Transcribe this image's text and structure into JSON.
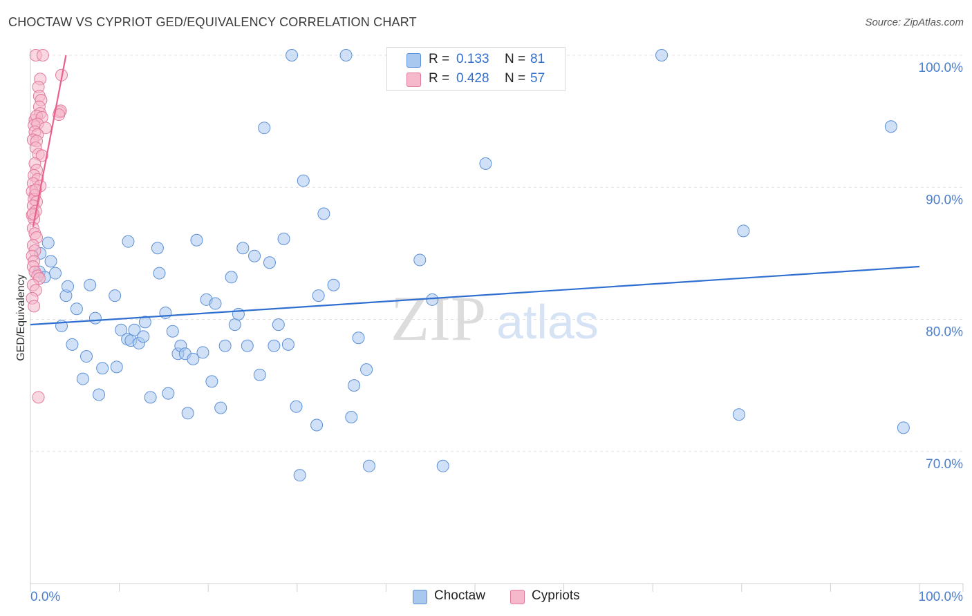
{
  "title": "CHOCTAW VS CYPRIOT GED/EQUIVALENCY CORRELATION CHART",
  "source": "Source: ZipAtlas.com",
  "watermark": {
    "zip": "ZIP",
    "atlas": "atlas"
  },
  "legend": {
    "rows": [
      {
        "r_label": "R =",
        "r_value": "0.133",
        "n_label": "N =",
        "n_value": "81",
        "color": "#a9c8f0",
        "border": "#5b8fd6"
      },
      {
        "r_label": "R =",
        "r_value": "0.428",
        "n_label": "N =",
        "n_value": "57",
        "color": "#f6b8cb",
        "border": "#e07a9c"
      }
    ]
  },
  "bottom_legend": [
    {
      "label": "Choctaw",
      "color": "#a9c8f0",
      "border": "#5b8fd6"
    },
    {
      "label": "Cypriots",
      "color": "#f6b8cb",
      "border": "#e07a9c"
    }
  ],
  "chart_data": {
    "type": "scatter",
    "title": "CHOCTAW VS CYPRIOT GED/EQUIVALENCY CORRELATION CHART",
    "xlabel": "",
    "ylabel": "GED/Equivalency",
    "xlim": [
      0,
      100
    ],
    "ylim": [
      60,
      100
    ],
    "x_tick_labels": [
      "0.0%",
      "100.0%"
    ],
    "y_ticks": [
      70,
      80,
      90,
      100
    ],
    "y_tick_labels": [
      "70.0%",
      "80.0%",
      "90.0%",
      "100.0%"
    ],
    "grid": true,
    "series": [
      {
        "name": "Choctaw",
        "color": "#a9c8f0",
        "edge": "#5b8fd6",
        "line_color": "#2f6fd0",
        "trend": {
          "x": [
            0,
            100
          ],
          "y": [
            79.6,
            84.0
          ]
        },
        "points": [
          [
            2.0,
            85.8
          ],
          [
            2.3,
            84.4
          ],
          [
            2.8,
            83.5
          ],
          [
            1.0,
            83.6
          ],
          [
            3.5,
            79.5
          ],
          [
            4.0,
            81.8
          ],
          [
            4.2,
            82.5
          ],
          [
            4.7,
            78.1
          ],
          [
            5.2,
            80.8
          ],
          [
            5.9,
            75.5
          ],
          [
            6.3,
            77.2
          ],
          [
            6.7,
            82.6
          ],
          [
            7.3,
            80.1
          ],
          [
            7.7,
            74.3
          ],
          [
            8.1,
            76.3
          ],
          [
            9.5,
            81.8
          ],
          [
            9.7,
            76.4
          ],
          [
            10.2,
            79.2
          ],
          [
            10.9,
            78.5
          ],
          [
            11.0,
            85.9
          ],
          [
            11.3,
            78.4
          ],
          [
            11.7,
            79.2
          ],
          [
            12.2,
            78.2
          ],
          [
            12.7,
            78.7
          ],
          [
            12.9,
            79.8
          ],
          [
            13.5,
            74.1
          ],
          [
            14.3,
            85.4
          ],
          [
            14.5,
            83.5
          ],
          [
            15.2,
            80.5
          ],
          [
            15.5,
            74.4
          ],
          [
            16.0,
            79.1
          ],
          [
            16.6,
            77.4
          ],
          [
            16.9,
            78.0
          ],
          [
            17.4,
            77.4
          ],
          [
            17.7,
            72.9
          ],
          [
            18.3,
            77.0
          ],
          [
            18.7,
            86.0
          ],
          [
            19.4,
            77.5
          ],
          [
            19.8,
            81.5
          ],
          [
            20.4,
            75.3
          ],
          [
            20.8,
            81.2
          ],
          [
            21.4,
            73.3
          ],
          [
            21.9,
            78.0
          ],
          [
            22.6,
            83.2
          ],
          [
            23.0,
            79.6
          ],
          [
            23.4,
            80.4
          ],
          [
            23.9,
            85.4
          ],
          [
            24.4,
            78.0
          ],
          [
            25.2,
            84.8
          ],
          [
            25.8,
            75.8
          ],
          [
            26.3,
            94.5
          ],
          [
            26.9,
            84.3
          ],
          [
            27.4,
            78.0
          ],
          [
            27.9,
            79.6
          ],
          [
            28.5,
            86.1
          ],
          [
            29.0,
            78.1
          ],
          [
            29.4,
            100.0
          ],
          [
            29.9,
            73.4
          ],
          [
            30.3,
            68.2
          ],
          [
            30.7,
            90.5
          ],
          [
            32.2,
            72.0
          ],
          [
            32.4,
            81.8
          ],
          [
            33.0,
            88.0
          ],
          [
            34.1,
            82.6
          ],
          [
            35.5,
            100.0
          ],
          [
            36.1,
            72.6
          ],
          [
            36.4,
            75.0
          ],
          [
            36.9,
            78.6
          ],
          [
            37.8,
            76.2
          ],
          [
            38.1,
            68.9
          ],
          [
            43.8,
            84.5
          ],
          [
            45.2,
            81.5
          ],
          [
            46.4,
            68.9
          ],
          [
            51.2,
            91.8
          ],
          [
            71.0,
            100.0
          ],
          [
            79.7,
            72.8
          ],
          [
            80.2,
            86.7
          ],
          [
            96.8,
            94.6
          ],
          [
            98.2,
            71.8
          ],
          [
            1.1,
            85.0
          ],
          [
            1.6,
            83.2
          ]
        ]
      },
      {
        "name": "Cypriots",
        "color": "#f6b8cb",
        "edge": "#e07a9c",
        "line_color": "#e8608c",
        "trend": {
          "x": [
            0.3,
            4.0
          ],
          "y": [
            87.0,
            100.0
          ]
        },
        "points": [
          [
            0.6,
            100.0
          ],
          [
            1.4,
            100.0
          ],
          [
            1.1,
            98.2
          ],
          [
            3.5,
            98.5
          ],
          [
            0.9,
            97.6
          ],
          [
            1.0,
            96.9
          ],
          [
            1.2,
            96.6
          ],
          [
            1.0,
            96.1
          ],
          [
            1.1,
            95.6
          ],
          [
            3.3,
            95.7
          ],
          [
            3.4,
            95.8
          ],
          [
            3.2,
            95.5
          ],
          [
            0.5,
            95.1
          ],
          [
            0.7,
            95.4
          ],
          [
            1.3,
            95.3
          ],
          [
            0.4,
            94.7
          ],
          [
            0.8,
            94.8
          ],
          [
            1.7,
            94.5
          ],
          [
            0.5,
            94.2
          ],
          [
            0.8,
            94.0
          ],
          [
            0.3,
            93.6
          ],
          [
            0.7,
            93.5
          ],
          [
            0.6,
            93.0
          ],
          [
            0.9,
            92.5
          ],
          [
            1.3,
            92.4
          ],
          [
            0.5,
            91.8
          ],
          [
            0.7,
            91.3
          ],
          [
            0.4,
            90.9
          ],
          [
            0.8,
            90.6
          ],
          [
            0.3,
            90.3
          ],
          [
            1.1,
            90.1
          ],
          [
            0.2,
            89.7
          ],
          [
            0.5,
            89.4
          ],
          [
            0.4,
            89.1
          ],
          [
            0.7,
            88.9
          ],
          [
            0.3,
            88.6
          ],
          [
            0.6,
            88.2
          ],
          [
            0.2,
            87.9
          ],
          [
            0.4,
            87.6
          ],
          [
            0.3,
            86.9
          ],
          [
            0.5,
            86.5
          ],
          [
            0.7,
            86.2
          ],
          [
            0.3,
            85.6
          ],
          [
            0.5,
            85.2
          ],
          [
            0.2,
            84.8
          ],
          [
            0.4,
            84.4
          ],
          [
            0.3,
            84.0
          ],
          [
            0.5,
            83.6
          ],
          [
            0.8,
            83.3
          ],
          [
            1.0,
            83.1
          ],
          [
            0.3,
            82.6
          ],
          [
            0.6,
            82.2
          ],
          [
            0.2,
            81.6
          ],
          [
            0.4,
            81.0
          ],
          [
            0.9,
            74.1
          ],
          [
            0.3,
            88.0
          ],
          [
            0.6,
            89.8
          ]
        ]
      }
    ]
  }
}
